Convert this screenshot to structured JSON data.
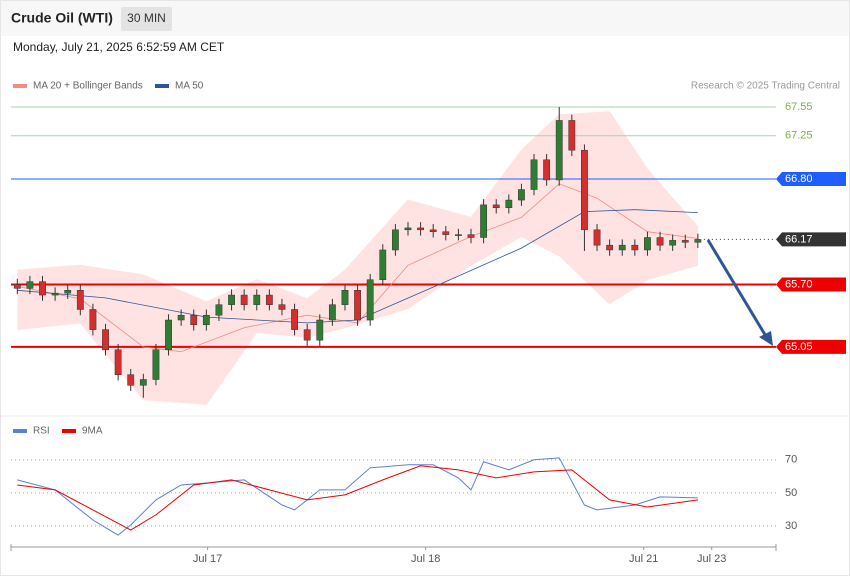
{
  "chart_data": {
    "type": "candlestick",
    "title": "Crude Oil (WTI)",
    "interval": "30 MIN",
    "subtitle": "Monday, July 21, 2025 6:52:59 AM CET",
    "credit": "Research © 2025 Trading Central",
    "up_color": "#2e7d32",
    "down_color": "#d32f2f",
    "xlim": [
      -0.5,
      60.2
    ],
    "xticks": [
      {
        "value": 15.1,
        "label": "Jul 17"
      },
      {
        "value": 32.4,
        "label": "Jul 18"
      },
      {
        "value": 49.7,
        "label": "Jul 21"
      },
      {
        "value": 55.1,
        "label": "Jul 23"
      }
    ],
    "ylim": [
      64.34,
      68.04
    ],
    "open": [
      65.7,
      65.66,
      65.73,
      65.59,
      65.61,
      65.64,
      65.44,
      65.23,
      65.02,
      64.76,
      64.65,
      64.71,
      65.02,
      65.33,
      65.38,
      65.28,
      65.38,
      65.49,
      65.59,
      65.49,
      65.59,
      65.49,
      65.44,
      65.23,
      65.12,
      65.33,
      65.49,
      65.64,
      65.33,
      65.75,
      66.06,
      66.27,
      66.29,
      66.27,
      66.25,
      66.22,
      66.22,
      66.19,
      66.53,
      66.5,
      66.58,
      66.69,
      67.0,
      66.79,
      67.41,
      67.1,
      66.27,
      66.11,
      66.06,
      66.11,
      66.06,
      66.19,
      66.11,
      66.16,
      66.14
    ],
    "high": [
      65.76,
      65.79,
      65.79,
      65.67,
      65.7,
      65.7,
      65.5,
      65.29,
      65.08,
      64.82,
      64.77,
      65.08,
      65.39,
      65.44,
      65.44,
      65.44,
      65.55,
      65.65,
      65.65,
      65.65,
      65.65,
      65.55,
      65.5,
      65.29,
      65.39,
      65.55,
      65.7,
      65.7,
      65.81,
      66.12,
      66.33,
      66.35,
      66.35,
      66.33,
      66.31,
      66.28,
      66.28,
      66.59,
      66.59,
      66.64,
      66.75,
      67.06,
      67.06,
      67.55,
      67.47,
      67.16,
      66.33,
      66.17,
      66.17,
      66.17,
      66.25,
      66.25,
      66.22,
      66.22,
      66.23
    ],
    "low": [
      65.6,
      65.6,
      65.53,
      65.53,
      65.55,
      65.38,
      65.17,
      64.96,
      64.7,
      64.59,
      64.52,
      64.65,
      64.96,
      65.27,
      65.22,
      65.22,
      65.32,
      65.43,
      65.43,
      65.43,
      65.43,
      65.38,
      65.17,
      65.06,
      65.06,
      65.27,
      65.43,
      65.27,
      65.27,
      65.69,
      66.0,
      66.21,
      66.21,
      66.19,
      66.16,
      66.16,
      66.13,
      66.13,
      66.44,
      66.44,
      66.52,
      66.63,
      66.73,
      66.73,
      67.04,
      66.05,
      66.05,
      66.0,
      66.0,
      66.0,
      66.0,
      66.05,
      66.05,
      66.08,
      66.08
    ],
    "close": [
      65.66,
      65.73,
      65.59,
      65.61,
      65.64,
      65.44,
      65.23,
      65.02,
      64.76,
      64.65,
      64.71,
      65.02,
      65.33,
      65.38,
      65.28,
      65.38,
      65.49,
      65.59,
      65.49,
      65.59,
      65.49,
      65.44,
      65.23,
      65.12,
      65.33,
      65.49,
      65.64,
      65.33,
      65.75,
      66.06,
      66.27,
      66.29,
      66.27,
      66.25,
      66.22,
      66.22,
      66.19,
      66.53,
      66.5,
      66.58,
      66.69,
      67.0,
      66.79,
      67.41,
      67.1,
      66.27,
      66.11,
      66.06,
      66.11,
      66.06,
      66.19,
      66.11,
      66.16,
      66.14,
      66.17
    ],
    "bollinger": {
      "name": "MA 20 + Bollinger Bands",
      "color": "#f28b82",
      "fill": "#ffe3e3",
      "x": [
        0,
        5,
        10,
        15,
        19,
        23,
        26,
        31,
        36,
        40,
        43,
        47,
        50,
        54
      ],
      "upper": [
        65.85,
        65.9,
        65.8,
        65.52,
        65.75,
        65.55,
        65.85,
        66.58,
        66.4,
        67.1,
        67.47,
        67.5,
        66.9,
        66.3
      ],
      "lower": [
        65.23,
        65.3,
        64.5,
        64.45,
        65.2,
        65.15,
        65.25,
        65.45,
        65.9,
        66.2,
        66.0,
        65.5,
        65.75,
        65.9
      ],
      "ma_x": [
        0,
        5,
        10,
        13,
        18,
        23,
        27,
        31,
        36,
        40,
        43,
        46,
        50,
        54
      ],
      "ma": [
        65.68,
        65.55,
        65.05,
        65.0,
        65.25,
        65.38,
        65.3,
        65.9,
        66.2,
        66.4,
        66.75,
        66.6,
        66.25,
        66.18
      ]
    },
    "ma50": {
      "name": "MA 50",
      "color": "#2f5597",
      "x": [
        0,
        7,
        15,
        23,
        27,
        34,
        40,
        45,
        49,
        54
      ],
      "values": [
        65.64,
        65.56,
        65.36,
        65.3,
        65.33,
        65.73,
        66.08,
        66.46,
        66.48,
        66.45
      ]
    },
    "levels": [
      {
        "value": 67.55,
        "color": "#7cb342",
        "style": "thin"
      },
      {
        "value": 67.25,
        "color": "#7cb342",
        "style": "thin"
      },
      {
        "value": 66.8,
        "label": "66.80",
        "color": "#1e5eff",
        "style": "boxed"
      },
      {
        "value": 66.17,
        "color": "#333333",
        "style": "dotted"
      },
      {
        "value": 65.7,
        "label": "65.70",
        "color": "#ee0000",
        "style": "bold"
      },
      {
        "value": 65.05,
        "color": "#ee0000",
        "style": "bold"
      }
    ],
    "rsi": {
      "ylim": [
        18.5,
        82
      ],
      "yticks": [
        30,
        50,
        70
      ],
      "series": [
        {
          "name": "RSI",
          "color": "#5b7fd6",
          "x": [
            0,
            3,
            6,
            8,
            9,
            11,
            13,
            15,
            18,
            21,
            22,
            24,
            26,
            28,
            31,
            33,
            35,
            36,
            37,
            39,
            41,
            43,
            45,
            46,
            49,
            51,
            54
          ],
          "values": [
            57.9,
            51.8,
            33.6,
            24.5,
            30.6,
            45.8,
            54.8,
            56,
            57.9,
            42.7,
            39.7,
            51.8,
            51.8,
            65.2,
            67,
            67,
            59.1,
            51.8,
            68.8,
            63.9,
            70,
            71.2,
            42.7,
            39.7,
            42.7,
            47.6,
            47
          ]
        },
        {
          "name": "9MA",
          "color": "#ee0000",
          "x": [
            0,
            3,
            6,
            9,
            11,
            14,
            17,
            20,
            23,
            26,
            29,
            32,
            35,
            38,
            41,
            44,
            47,
            50,
            54
          ],
          "values": [
            54.8,
            51.8,
            39.7,
            27.6,
            36.7,
            54.8,
            57.9,
            51.8,
            45.8,
            48.8,
            57.9,
            66.4,
            63.9,
            59.1,
            62.7,
            63.9,
            45.8,
            41.5,
            45.8
          ]
        }
      ]
    }
  }
}
